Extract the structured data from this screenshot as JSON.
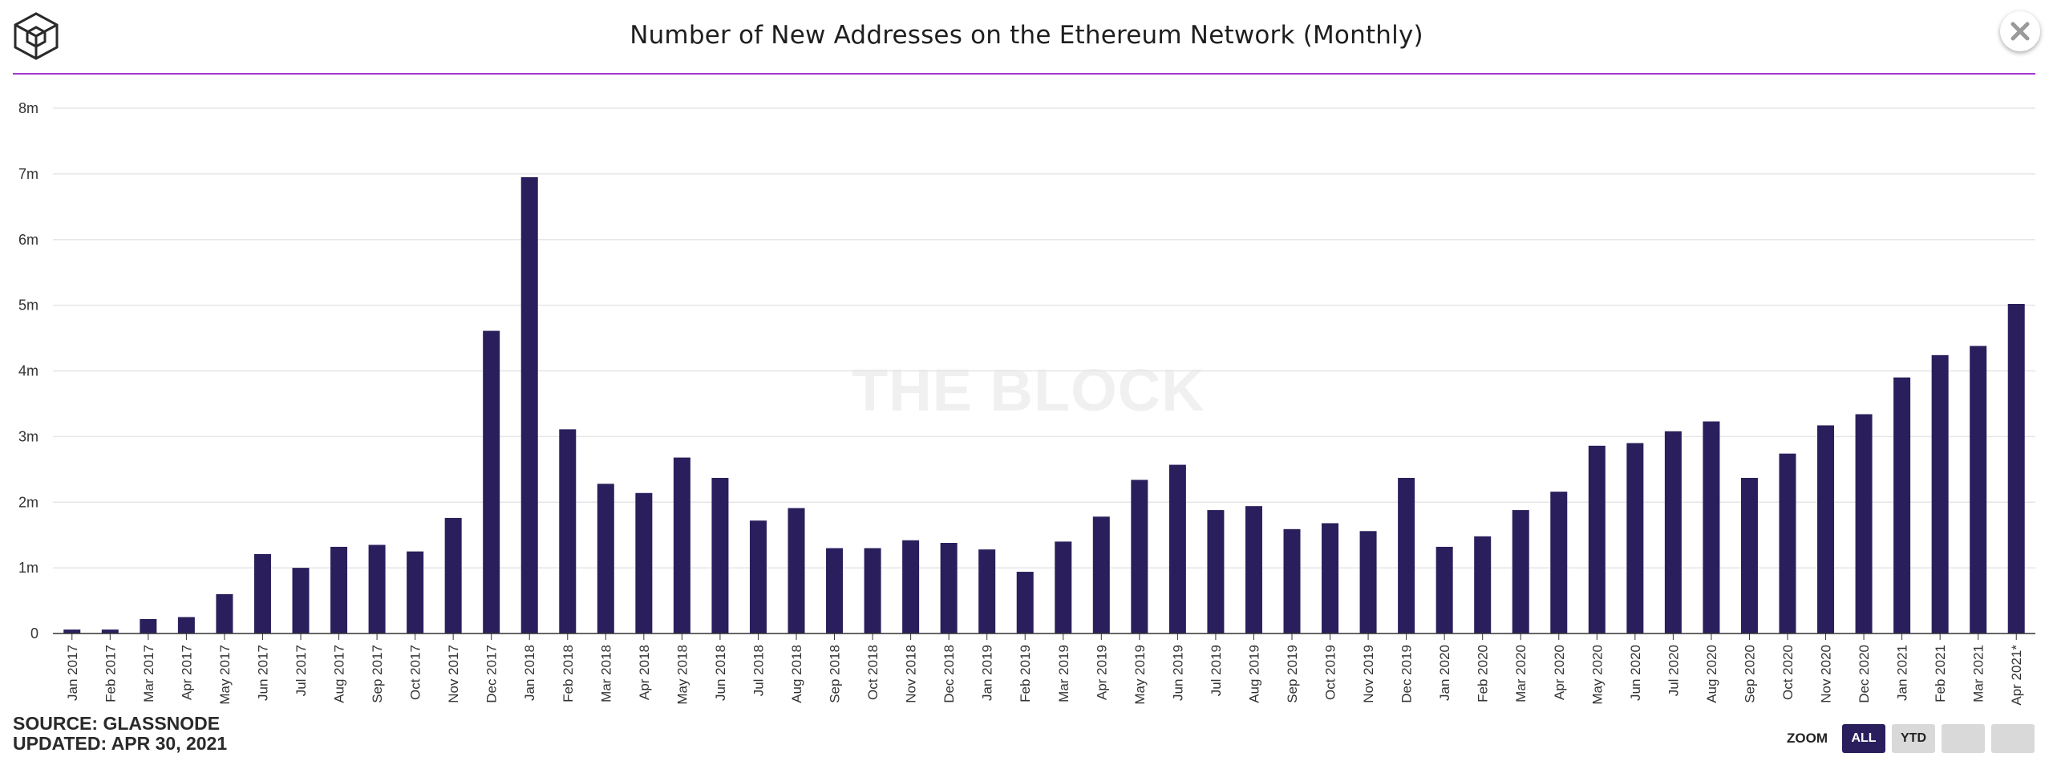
{
  "header": {
    "title": "Number of New Addresses on the Ethereum Network (Monthly)",
    "logo_icon": "the-block-cube-logo",
    "close_icon": "close-icon"
  },
  "watermark": "THE BLOCK",
  "footer": {
    "source": "SOURCE: GLASSNODE",
    "updated": "UPDATED: APR 30, 2021"
  },
  "zoom": {
    "label": "ZOOM",
    "buttons": [
      "ALL",
      "YTD",
      "",
      ""
    ],
    "active": "ALL"
  },
  "colors": {
    "bar": "#2a1f5c",
    "accent_rule": "#a23ad0",
    "grid": "#e6e6e6"
  },
  "chart_data": {
    "type": "bar",
    "title": "Number of New Addresses on the Ethereum Network (Monthly)",
    "xlabel": "",
    "ylabel": "",
    "ylim": [
      0,
      8000000
    ],
    "yticks": [
      0,
      1000000,
      2000000,
      3000000,
      4000000,
      5000000,
      6000000,
      7000000,
      8000000
    ],
    "ytick_labels": [
      "0",
      "1m",
      "2m",
      "3m",
      "4m",
      "5m",
      "6m",
      "7m",
      "8m"
    ],
    "grid": true,
    "legend": "none",
    "categories": [
      "Jan 2017",
      "Feb 2017",
      "Mar 2017",
      "Apr 2017",
      "May 2017",
      "Jun 2017",
      "Jul 2017",
      "Aug 2017",
      "Sep 2017",
      "Oct 2017",
      "Nov 2017",
      "Dec 2017",
      "Jan 2018",
      "Feb 2018",
      "Mar 2018",
      "Apr 2018",
      "May 2018",
      "Jun 2018",
      "Jul 2018",
      "Aug 2018",
      "Sep 2018",
      "Oct 2018",
      "Nov 2018",
      "Dec 2018",
      "Jan 2019",
      "Feb 2019",
      "Mar 2019",
      "Apr 2019",
      "May 2019",
      "Jun 2019",
      "Jul 2019",
      "Aug 2019",
      "Sep 2019",
      "Oct 2019",
      "Nov 2019",
      "Dec 2019",
      "Jan 2020",
      "Feb 2020",
      "Mar 2020",
      "Apr 2020",
      "May 2020",
      "Jun 2020",
      "Jul 2020",
      "Aug 2020",
      "Sep 2020",
      "Oct 2020",
      "Nov 2020",
      "Dec 2020",
      "Jan 2021",
      "Feb 2021",
      "Mar 2021",
      "Apr 2021*"
    ],
    "values": [
      60000,
      60000,
      220000,
      250000,
      600000,
      1210000,
      1000000,
      1320000,
      1350000,
      1250000,
      1760000,
      4610000,
      6950000,
      3110000,
      2280000,
      2140000,
      2680000,
      2370000,
      1720000,
      1910000,
      1300000,
      1300000,
      1420000,
      1380000,
      1280000,
      940000,
      1400000,
      1780000,
      2340000,
      2570000,
      1880000,
      1940000,
      1590000,
      1680000,
      1560000,
      2370000,
      1320000,
      1480000,
      1880000,
      2160000,
      2860000,
      2900000,
      3080000,
      3230000,
      2370000,
      2740000,
      3170000,
      3340000,
      3900000,
      4240000,
      4380000,
      5020000
    ]
  }
}
